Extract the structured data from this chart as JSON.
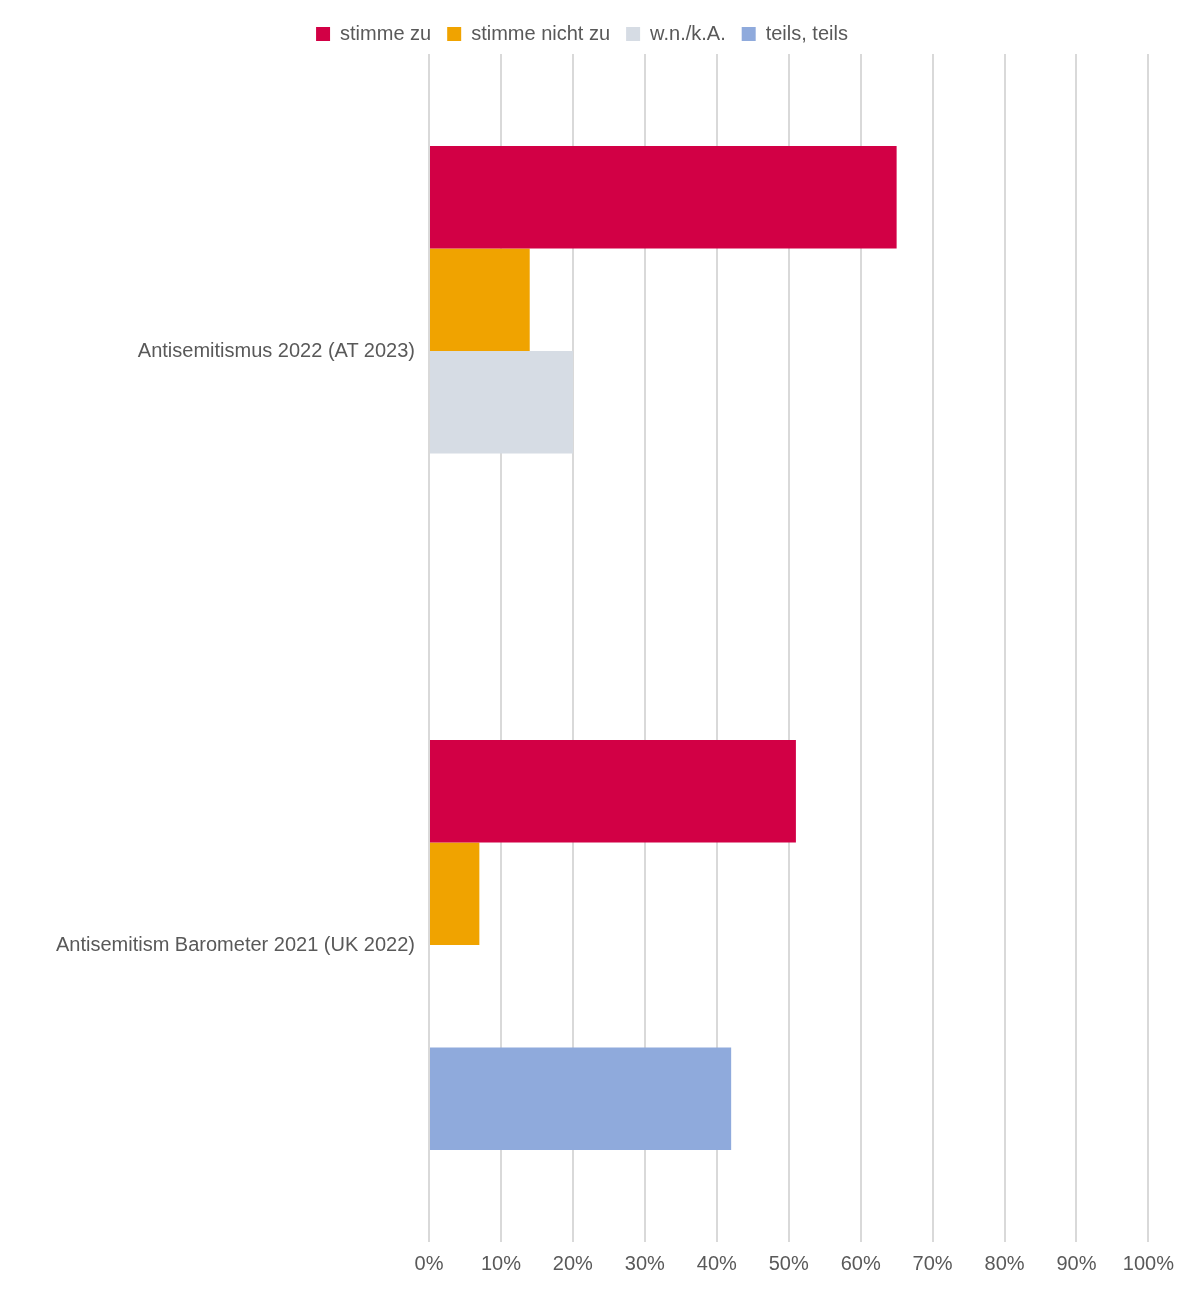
{
  "chart_data": {
    "type": "bar",
    "orientation": "horizontal",
    "categories": [
      "Antisemitismus 2022 (AT 2023)",
      "Antisemitism Barometer 2021 (UK 2022)"
    ],
    "series": [
      {
        "name": "stimme zu",
        "color": "#d20045",
        "values": [
          65,
          51
        ]
      },
      {
        "name": "stimme nicht zu",
        "color": "#f0a300",
        "values": [
          14,
          7
        ]
      },
      {
        "name": "w.n./k.A.",
        "color": "#d6dce4",
        "values": [
          20,
          null
        ]
      },
      {
        "name": "teils, teils",
        "color": "#8faadc",
        "values": [
          null,
          42
        ]
      }
    ],
    "xlim": [
      0,
      100
    ],
    "xticks": [
      {
        "value": 0,
        "label": "0%"
      },
      {
        "value": 10,
        "label": "10%"
      },
      {
        "value": 20,
        "label": "20%"
      },
      {
        "value": 30,
        "label": "30%"
      },
      {
        "value": 40,
        "label": "40%"
      },
      {
        "value": 50,
        "label": "50%"
      },
      {
        "value": 60,
        "label": "60%"
      },
      {
        "value": 70,
        "label": "70%"
      },
      {
        "value": 80,
        "label": "80%"
      },
      {
        "value": 90,
        "label": "90%"
      },
      {
        "value": 100,
        "label": "100%"
      }
    ],
    "grid": "x",
    "legend": "top"
  }
}
